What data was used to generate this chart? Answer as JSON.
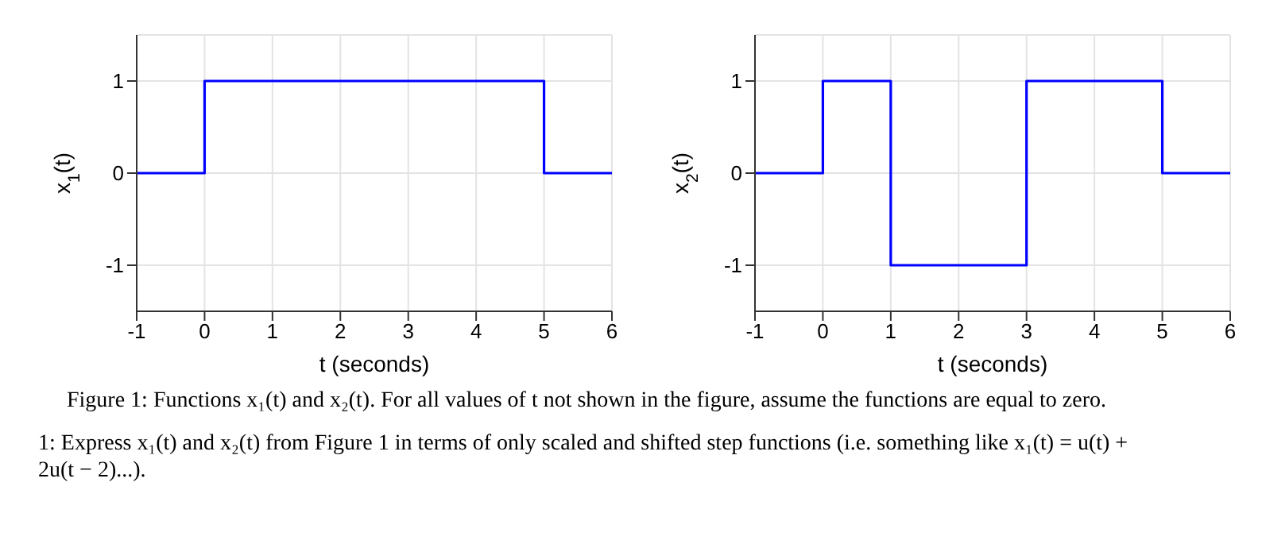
{
  "chart_data": [
    {
      "type": "step",
      "x": [
        -1,
        0,
        5,
        6
      ],
      "values": [
        0,
        1,
        0,
        0
      ],
      "color": "#0000ff",
      "xlim": [
        -1,
        6
      ],
      "ylim": [
        -1.5,
        1.5
      ],
      "xticks": [
        -1,
        0,
        1,
        2,
        3,
        4,
        5,
        6
      ],
      "yticks": [
        -1,
        0,
        1
      ],
      "grid": true,
      "xlabel": "t (seconds)",
      "ylabel": "x$_{1}$(t)",
      "annotations": [
        "Figure 1: Functions x₁(t) and x₂(t). For all values of t not shown in the figure, assume the functions are equal to zero.",
        "1: Express x₁(t) and x₂(t) from Figure 1 in terms of only scaled and shifted step functions (i.e. something like x₁(t) = u(t) + 2u(t − 2)...)."
      ]
    },
    {
      "type": "step",
      "x": [
        -1,
        0,
        1,
        3,
        5,
        6
      ],
      "values": [
        0,
        1,
        -1,
        1,
        0,
        0
      ],
      "color": "#0000ff",
      "xlim": [
        -1,
        6
      ],
      "ylim": [
        -1.5,
        1.5
      ],
      "xticks": [
        -1,
        0,
        1,
        2,
        3,
        4,
        5,
        6
      ],
      "yticks": [
        -1,
        0,
        1
      ],
      "grid": true,
      "xlabel": "t (seconds)",
      "ylabel": "x$_{2}$(t)"
    }
  ]
}
